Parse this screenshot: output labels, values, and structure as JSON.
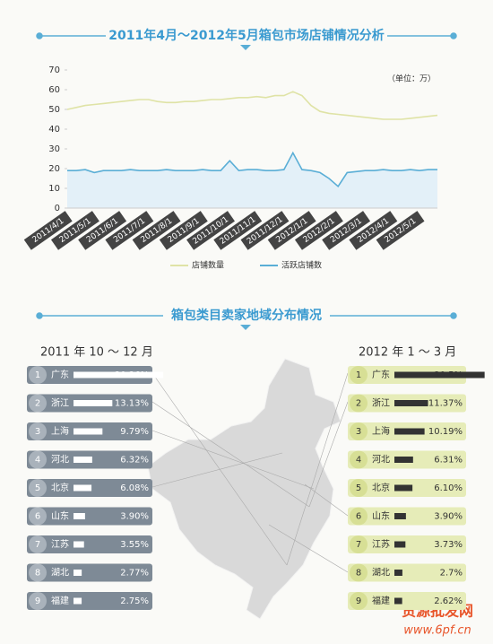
{
  "section_title": "箱包类目卖家地域分布情况",
  "watermark": {
    "name": "货源批发网",
    "url": "www.6pf.cn"
  },
  "chart_data": [
    {
      "type": "line",
      "title": "2011年4月～2012年5月箱包市场店铺情况分析",
      "unit": "（单位：万）",
      "categories": [
        "2011/4/1",
        null,
        null,
        "2011/5/1",
        null,
        null,
        "2011/6/1",
        null,
        null,
        "2011/7/1",
        null,
        null,
        "2011/8/1",
        null,
        null,
        "2011/9/1",
        null,
        null,
        "2011/10/1",
        null,
        null,
        "2011/11/1",
        null,
        null,
        "2011/12/1",
        null,
        null,
        "2012/1/1",
        null,
        null,
        "2012/2/1",
        null,
        null,
        "2012/3/1",
        null,
        null,
        "2012/4/1",
        null,
        null,
        "2012/5/1",
        null,
        null
      ],
      "series": [
        {
          "name": "店铺数量",
          "color": "#dfe3a6",
          "values": [
            50,
            51,
            52,
            52.5,
            53,
            53.5,
            54,
            54.5,
            55,
            55,
            54,
            53.5,
            53.5,
            54,
            54,
            54.5,
            55,
            55,
            55.5,
            56,
            56,
            56.5,
            56,
            57,
            57,
            59,
            57,
            52,
            49,
            48,
            47.5,
            47,
            46.5,
            46,
            45.5,
            45,
            45,
            45,
            45.5,
            46,
            46.5,
            47
          ]
        },
        {
          "name": "活跃店铺数",
          "color": "#5aaed6",
          "area_color": "#e3f0f8",
          "values": [
            19,
            19,
            19.5,
            18,
            19,
            19,
            19,
            19.5,
            19,
            19,
            19,
            19.5,
            19,
            19,
            19,
            19.5,
            19,
            19,
            24,
            19,
            19.5,
            19.5,
            19,
            19,
            19.5,
            28,
            19.5,
            19,
            18,
            15,
            11,
            18,
            18.5,
            19,
            19,
            19.5,
            19,
            19,
            19.5,
            19,
            19.5,
            19.5
          ]
        }
      ],
      "ylim": [
        0,
        70
      ],
      "yticks": [
        0,
        10,
        20,
        30,
        40,
        50,
        60,
        70
      ],
      "grid": false
    },
    {
      "type": "hbar",
      "title": "2011 年 10 ～ 12 月",
      "color": "#ffffff",
      "box_color": "#7e8a96",
      "ranks": [
        1,
        2,
        3,
        4,
        5,
        6,
        7,
        8,
        9
      ],
      "categories": [
        "广东",
        "浙江",
        "上海",
        "河北",
        "北京",
        "山东",
        "江苏",
        "湖北",
        "福建"
      ],
      "values": [
        30.36,
        13.13,
        9.79,
        6.32,
        6.08,
        3.9,
        3.55,
        2.77,
        2.75
      ],
      "value_labels": [
        "30.36%",
        "13.13%",
        "9.79%",
        "6.32%",
        "6.08%",
        "3.90%",
        "3.55%",
        "2.77%",
        "2.75%"
      ]
    },
    {
      "type": "hbar",
      "title": "2012 年 1 ～ 3 月",
      "color": "#333333",
      "box_color": "#e6ecb8",
      "ranks": [
        1,
        2,
        3,
        4,
        5,
        6,
        7,
        8,
        9
      ],
      "categories": [
        "广东",
        "浙江",
        "上海",
        "河北",
        "北京",
        "山东",
        "江苏",
        "湖北",
        "福建"
      ],
      "values": [
        30.5,
        11.37,
        10.19,
        6.31,
        6.1,
        3.9,
        3.73,
        2.7,
        2.62
      ],
      "value_labels": [
        "30.5%",
        "11.37%",
        "10.19%",
        "6.31%",
        "6.10%",
        "3.90%",
        "3.73%",
        "2.7%",
        "2.62%"
      ]
    }
  ]
}
